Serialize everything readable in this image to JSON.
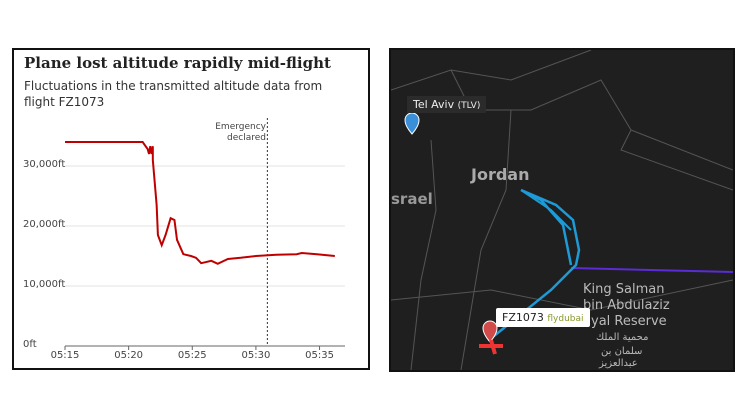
{
  "chart_data": {
    "type": "line",
    "title": "Plane lost altitude rapidly mid-flight",
    "subtitle": "Fluctuations in the transmitted altitude data from flight FZ1073",
    "x": [
      315,
      321.1,
      321.5,
      321.6,
      321.7,
      321.8,
      321.9,
      321.9,
      322.2,
      322.3,
      322.6,
      322.9,
      323.3,
      323.6,
      323.8,
      324.3,
      324.9,
      325.3,
      325.7,
      326.5,
      327.0,
      327.8,
      328.8,
      330.0,
      331.6,
      333.2,
      333.6,
      334.8,
      336.2
    ],
    "series": [
      {
        "name": "Altitude",
        "color": "#c00000",
        "values": [
          34000,
          34000,
          32800,
          32000,
          33300,
          32000,
          33300,
          31000,
          23500,
          18500,
          16800,
          18500,
          21300,
          21000,
          17700,
          15300,
          15000,
          14700,
          13800,
          14200,
          13700,
          14500,
          14700,
          15000,
          15200,
          15300,
          15500,
          15300,
          15000
        ]
      }
    ],
    "xlim": [
      315,
      337
    ],
    "xticks": [
      {
        "value": 315,
        "label": "05:15"
      },
      {
        "value": 320,
        "label": "05:20"
      },
      {
        "value": 325,
        "label": "05:25"
      },
      {
        "value": 330,
        "label": "05:30"
      },
      {
        "value": 335,
        "label": "05:35"
      }
    ],
    "ylim": [
      0,
      38000
    ],
    "yticks": [
      {
        "value": 0,
        "label": "0ft"
      },
      {
        "value": 10000,
        "label": "10,000ft"
      },
      {
        "value": 20000,
        "label": "20,000ft"
      },
      {
        "value": 30000,
        "label": "30,000ft"
      }
    ],
    "grid": true,
    "annotation": {
      "text": "Emergency declared",
      "x": 330.9
    }
  },
  "map": {
    "labels": {
      "city": "Tel Aviv",
      "code": "(TLV)",
      "country": "Jordan",
      "country2": "srael",
      "reserve1": "King Salman",
      "reserve2": "bin Abdulaziz",
      "reserve3": "yal Reserve",
      "arabic1": "محمية الملك",
      "arabic2": "سلمان بن",
      "arabic3": "عبدالعزيز"
    },
    "flight": {
      "number": "FZ1073",
      "airline": "flydubai"
    }
  }
}
